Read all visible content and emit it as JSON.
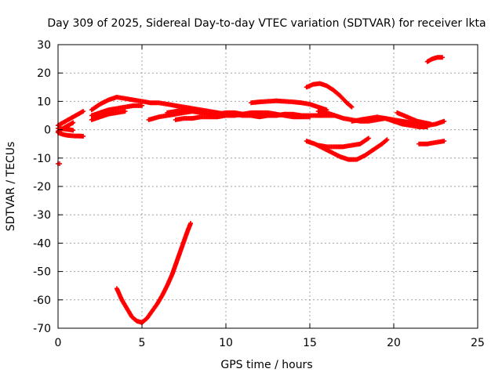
{
  "chart_data": {
    "type": "scatter",
    "title": "Day 309 of 2025, Sidereal Day-to-day VTEC variation (SDTVAR) for receiver lkta",
    "xlabel": "GPS time / hours",
    "ylabel": "SDTVAR / TECUs",
    "xlim": [
      0,
      25
    ],
    "ylim": [
      -70,
      30
    ],
    "xticks": [
      0,
      5,
      10,
      15,
      20,
      25
    ],
    "yticks": [
      -70,
      -60,
      -50,
      -40,
      -30,
      -20,
      -10,
      0,
      10,
      20,
      30
    ],
    "xtick_labels": [
      "0",
      "5",
      "10",
      "15",
      "20",
      "25"
    ],
    "ytick_labels": [
      "-70",
      "-60",
      "-50",
      "-40",
      "-30",
      "-20",
      "-10",
      "0",
      "10",
      "20",
      "30"
    ],
    "grid": true,
    "marker_color": "#ff0000",
    "series": [
      {
        "name": "deep-dip",
        "x": [
          3.5,
          3.8,
          4.1,
          4.4,
          4.7,
          5.0,
          5.3,
          5.6,
          5.9,
          6.2,
          6.5,
          6.8,
          7.1,
          7.4,
          7.7,
          7.9
        ],
        "y": [
          -56,
          -60,
          -63,
          -66,
          -67.5,
          -68,
          -66.5,
          -64,
          -61.5,
          -58.5,
          -55,
          -51,
          -46,
          -41,
          -36,
          -33
        ]
      },
      {
        "name": "early-low",
        "x": [
          0.0,
          0.2,
          0.4,
          0.6,
          0.8,
          1.0,
          1.2,
          1.5
        ],
        "y": [
          -1,
          -1.5,
          -1.8,
          -2,
          -2.1,
          -2.2,
          -2.2,
          -2.3
        ]
      },
      {
        "name": "early-low-2",
        "x": [
          0.0,
          0.3,
          0.6,
          0.9
        ],
        "y": [
          0.5,
          0.3,
          0.1,
          -0.2
        ]
      },
      {
        "name": "early-rise",
        "x": [
          0.0,
          0.3,
          0.6,
          0.9,
          1.2,
          1.5
        ],
        "y": [
          1.5,
          2.5,
          3.5,
          4.5,
          5.5,
          6.5
        ]
      },
      {
        "name": "early-rise-2",
        "x": [
          0.0,
          0.3,
          0.6,
          0.9
        ],
        "y": [
          -0.5,
          0.5,
          1.5,
          2.5
        ]
      },
      {
        "name": "outlier-start",
        "x": [
          0.0
        ],
        "y": [
          -12
        ]
      },
      {
        "name": "morning-upper",
        "x": [
          2.0,
          2.5,
          3.0,
          3.5,
          4.0,
          4.5,
          5.0,
          5.5,
          6.0,
          6.5,
          7.0,
          7.5,
          8.0
        ],
        "y": [
          7,
          9,
          10.5,
          11.5,
          11,
          10.5,
          10,
          9.5,
          9.5,
          9,
          8.5,
          8,
          7.5
        ]
      },
      {
        "name": "morning-mid",
        "x": [
          2.0,
          2.5,
          3.0,
          3.5,
          4.0,
          4.5,
          5.0
        ],
        "y": [
          5,
          6,
          7,
          7.5,
          8,
          8.5,
          8.5
        ]
      },
      {
        "name": "morning-lower",
        "x": [
          2.0,
          2.5,
          3.0,
          3.5,
          4.0
        ],
        "y": [
          3.5,
          4.5,
          5.5,
          6,
          6.5
        ]
      },
      {
        "name": "band-a",
        "x": [
          5.4,
          6.0,
          6.5,
          7.0,
          7.5,
          8.0,
          8.5,
          9.0,
          9.5,
          10.0,
          10.5,
          11.0,
          11.5,
          12.0,
          12.5,
          13.0,
          13.5,
          14.0,
          14.5,
          15.0,
          15.5,
          16.0,
          16.5
        ],
        "y": [
          3.5,
          4.5,
          5,
          5.5,
          6,
          6.5,
          6,
          5.5,
          5.5,
          6,
          6,
          5.5,
          5.5,
          5,
          5,
          5,
          5.5,
          5.5,
          5,
          5,
          5,
          5,
          5
        ]
      },
      {
        "name": "band-b",
        "x": [
          6.5,
          7.0,
          7.5,
          8.0,
          8.5,
          9.0,
          9.5,
          10.0,
          10.5,
          11.0,
          11.5,
          12.0,
          12.5,
          13.0,
          13.5,
          14.0
        ],
        "y": [
          6,
          6.5,
          7,
          7.5,
          7,
          6.5,
          6,
          5.5,
          5.5,
          5,
          5,
          4.5,
          5,
          5,
          5.5,
          5
        ]
      },
      {
        "name": "band-c",
        "x": [
          7.0,
          7.5,
          8.0,
          8.5,
          9.0,
          9.5,
          10.0,
          10.5,
          11.0,
          11.5,
          12.0,
          12.5,
          13.0,
          13.5,
          14.0,
          14.5,
          15.0
        ],
        "y": [
          3.5,
          4,
          4,
          4.5,
          4.5,
          4.5,
          5,
          5,
          5.5,
          6,
          6,
          6,
          5.5,
          5,
          4.5,
          4.5,
          4.5
        ]
      },
      {
        "name": "arch-mid",
        "x": [
          11.5,
          12.0,
          12.5,
          13.0,
          13.5,
          14.0,
          14.5,
          15.0,
          15.5,
          16.0
        ],
        "y": [
          9.5,
          9.8,
          10,
          10.2,
          10,
          9.8,
          9.5,
          9,
          8,
          7
        ]
      },
      {
        "name": "hump-15",
        "x": [
          14.8,
          15.2,
          15.6,
          16.0,
          16.4,
          16.8,
          17.2,
          17.5
        ],
        "y": [
          15,
          16,
          16.3,
          15.5,
          14,
          12,
          9.5,
          8
        ]
      },
      {
        "name": "afternoon-band",
        "x": [
          15.5,
          16.0,
          16.5,
          17.0,
          17.5,
          18.0,
          18.5,
          19.0,
          19.5,
          20.0,
          20.5,
          21.0,
          21.5,
          22.0,
          22.5,
          23.0
        ],
        "y": [
          6.5,
          6,
          5,
          4,
          3.5,
          3,
          3,
          3.5,
          4,
          3.5,
          3,
          2.5,
          2,
          1.5,
          2,
          3
        ]
      },
      {
        "name": "afternoon-band-2",
        "x": [
          17.5,
          18.0,
          18.5,
          19.0,
          19.5,
          20.0,
          20.5,
          21.0,
          21.5,
          22.0
        ],
        "y": [
          3,
          3.5,
          4,
          4.5,
          4,
          3,
          2,
          1.5,
          1,
          1
        ]
      },
      {
        "name": "afternoon-band-3",
        "x": [
          20.2,
          20.6,
          21.0,
          21.4,
          21.8,
          22.2
        ],
        "y": [
          6,
          5,
          4,
          3,
          2.5,
          2
        ]
      },
      {
        "name": "low-arc-a",
        "x": [
          14.8,
          15.3,
          15.8,
          16.3,
          16.8,
          17.3,
          17.8,
          18.3,
          18.8,
          19.3,
          19.6
        ],
        "y": [
          -4,
          -5,
          -6.5,
          -8,
          -9.5,
          -10.5,
          -10.5,
          -9,
          -7,
          -5,
          -3.5
        ]
      },
      {
        "name": "low-arc-b",
        "x": [
          15.5,
          16.0,
          16.5,
          17.0,
          17.5,
          18.0,
          18.5
        ],
        "y": [
          -5.5,
          -6,
          -6,
          -6,
          -5.5,
          -5,
          -3
        ]
      },
      {
        "name": "low-late",
        "x": [
          21.5,
          22.0,
          22.5,
          23.0
        ],
        "y": [
          -5,
          -5,
          -4.5,
          -4
        ]
      },
      {
        "name": "late-high",
        "x": [
          22.0,
          22.3,
          22.6,
          22.9
        ],
        "y": [
          24,
          25,
          25.5,
          25.5
        ]
      }
    ]
  }
}
